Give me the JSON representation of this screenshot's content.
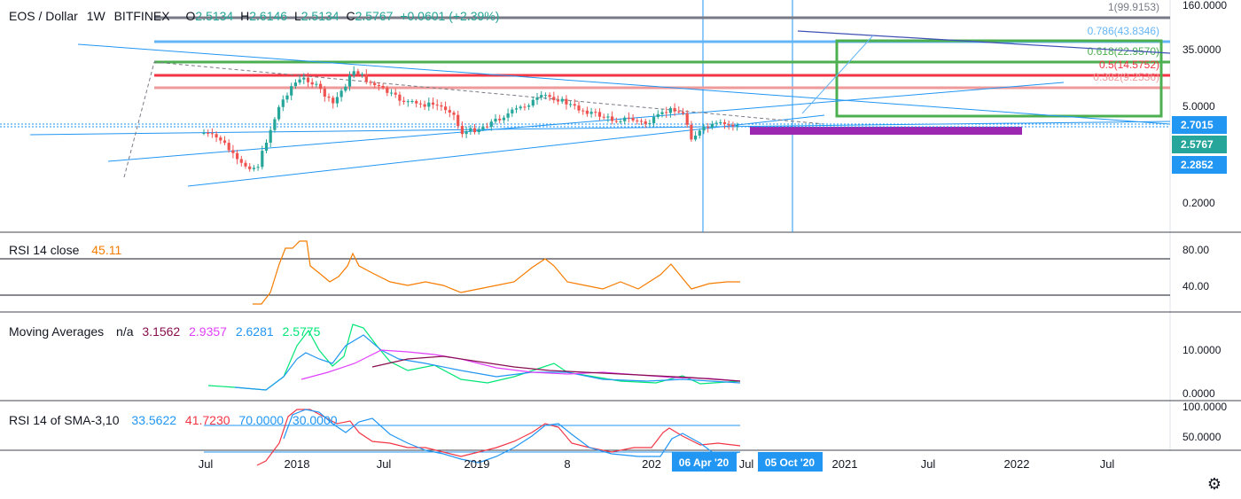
{
  "header": {
    "symbol": "EOS / Dollar",
    "interval": "1W",
    "exchange": "BITFINEX",
    "open_label": "O",
    "open": "2.5134",
    "high_label": "H",
    "high": "2.6146",
    "low_label": "L",
    "low": "2.5134",
    "close_label": "C",
    "close": "2.5767",
    "change": "+0.0601 (+2.39%)"
  },
  "price_axis": {
    "labels": [
      "160.0000",
      "35.0000",
      "5.0000",
      "0.2000"
    ],
    "tags": [
      {
        "text": "2.7015",
        "color": "#2196f3"
      },
      {
        "text": "2.5767",
        "color": "#26a69a"
      },
      {
        "text": "2.2852",
        "color": "#2196f3"
      }
    ]
  },
  "fib_levels": [
    {
      "label": "1(99.9153)",
      "color": "#787b86"
    },
    {
      "label": "0.786(43.8346)",
      "color": "#64b5f6"
    },
    {
      "label": "0.618(22.9570)",
      "color": "#4caf50"
    },
    {
      "label": "0.5(14.5752)",
      "color": "#f23645"
    },
    {
      "label": "0.382(9.2536)",
      "color": "#ef9a9a"
    }
  ],
  "time_axis": {
    "labels": [
      "Jul",
      "2018",
      "Jul",
      "2019",
      "8",
      "202",
      "Jul",
      "2021",
      "Jul",
      "2022",
      "Jul"
    ],
    "markers": [
      "06 Apr '20",
      "05 Oct '20"
    ]
  },
  "rsi": {
    "name": "RSI 14 close",
    "value": "45.11",
    "color": "#f57c00",
    "axis": [
      "80.00",
      "40.00"
    ]
  },
  "ma": {
    "name": "Moving Averages",
    "na": "n/a",
    "values": [
      {
        "v": "3.1562",
        "color": "#880e4f"
      },
      {
        "v": "2.9357",
        "color": "#e040fb"
      },
      {
        "v": "2.6281",
        "color": "#2196f3"
      },
      {
        "v": "2.5775",
        "color": "#00e676"
      }
    ],
    "axis": [
      "10.0000",
      "0.0000"
    ]
  },
  "rsi_sma": {
    "name": "RSI 14 of SMA-3,10",
    "values": [
      {
        "v": "33.5622",
        "color": "#2196f3"
      },
      {
        "v": "41.7230",
        "color": "#f23645"
      },
      {
        "v": "70.0000",
        "color": "#2196f3"
      },
      {
        "v": "30.0000",
        "color": "#2196f3"
      }
    ],
    "axis": [
      "100.0000",
      "50.0000"
    ]
  },
  "settings_icon": "gear-icon",
  "chart_data": {
    "type": "candlestick",
    "symbol": "EOS / Dollar",
    "interval": "1W",
    "y_scale": "log",
    "dates_approx": [
      "2017-07",
      "2018-01",
      "2018-06",
      "2018-12",
      "2019-06",
      "2019-12",
      "2020-03",
      "2020-05"
    ],
    "close_approx": [
      2.4,
      8.0,
      14.0,
      2.2,
      7.0,
      2.6,
      1.8,
      2.58
    ],
    "rsi_last": 45.11,
    "rsi_bands": [
      70,
      30
    ],
    "moving_averages_last": [
      3.1562,
      2.9357,
      2.6281,
      2.5775
    ],
    "rsi_sma_last": [
      33.5622,
      41.723
    ]
  }
}
